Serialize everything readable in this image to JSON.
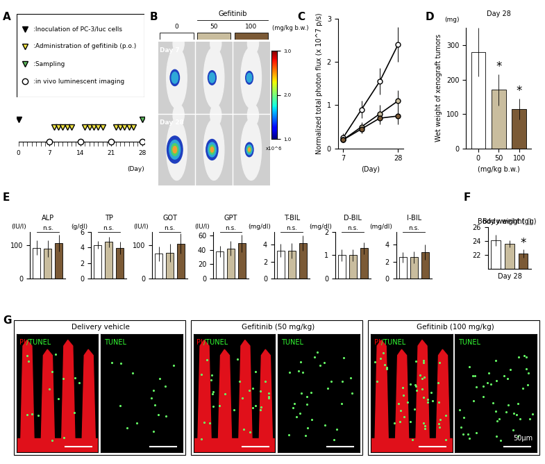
{
  "chart_data": [
    {
      "type": "line",
      "panel": "C",
      "ylabel": "Normalized total photon flux (x 10^7 p/s)",
      "xlabel": "(Day)",
      "x": [
        7,
        14,
        21,
        28
      ],
      "xlim": [
        5,
        30
      ],
      "xticks": [
        7,
        28
      ],
      "ylim": [
        0,
        3
      ],
      "yticks": [
        0,
        1,
        2,
        3
      ],
      "series": [
        {
          "color": "#ffffff",
          "marker": "o",
          "values": [
            0.25,
            0.9,
            1.55,
            2.4
          ],
          "errors": [
            0.1,
            0.2,
            0.3,
            0.4
          ]
        },
        {
          "color": "#c9bd9e",
          "marker": "o",
          "values": [
            0.2,
            0.5,
            0.8,
            1.1
          ],
          "errors": [
            0.05,
            0.1,
            0.2,
            0.25
          ]
        },
        {
          "color": "#7b5a36",
          "marker": "o",
          "values": [
            0.2,
            0.45,
            0.7,
            0.75
          ],
          "errors": [
            0.05,
            0.1,
            0.15,
            0.2
          ]
        }
      ]
    },
    {
      "type": "bar",
      "panel": "D",
      "title": "Day 28",
      "y_label": "(mg)",
      "ylabel": "Wet weight of xenograft tumors",
      "xlabel": "(mg/kg b.w.)",
      "categories": [
        "0",
        "50",
        "100"
      ],
      "values": [
        280,
        170,
        115
      ],
      "errors": [
        70,
        45,
        30
      ],
      "colors": [
        "#ffffff",
        "#c9bd9e",
        "#7b5a36"
      ],
      "ylim": [
        0,
        350
      ],
      "yticks": [
        0,
        100,
        200,
        300
      ],
      "annotations": [
        {
          "text": "*",
          "index": 1
        },
        {
          "text": "*",
          "index": 2
        }
      ]
    },
    {
      "type": "bar",
      "panel": "E",
      "title": "ALP",
      "y_label": "(IU/l)",
      "categories": [
        null,
        null,
        null
      ],
      "values": [
        92,
        90,
        107
      ],
      "errors": [
        22,
        25,
        25
      ],
      "colors": [
        "#ffffff",
        "#c9bd9e",
        "#7b5a36"
      ],
      "ylim": [
        0,
        140
      ],
      "yticks": [
        0,
        100
      ],
      "tick_labels": "y",
      "annotations": [
        {
          "text": "n.s."
        }
      ]
    },
    {
      "type": "bar",
      "panel": "E",
      "title": "TP",
      "y_label": "(g/dl)",
      "categories": [
        null,
        null,
        null
      ],
      "values": [
        4.3,
        4.7,
        3.9
      ],
      "errors": [
        0.5,
        0.7,
        0.8
      ],
      "colors": [
        "#ffffff",
        "#c9bd9e",
        "#7b5a36"
      ],
      "ylim": [
        0,
        6
      ],
      "yticks": [
        0,
        2,
        4,
        6
      ],
      "tick_labels": "y",
      "annotations": [
        {
          "text": "n.s."
        }
      ]
    },
    {
      "type": "bar",
      "panel": "E",
      "title": "GOT",
      "y_label": "(IU/l)",
      "categories": [
        null,
        null,
        null
      ],
      "values": [
        75,
        77,
        105
      ],
      "errors": [
        22,
        28,
        30
      ],
      "colors": [
        "#ffffff",
        "#c9bd9e",
        "#7b5a36"
      ],
      "ylim": [
        0,
        140
      ],
      "yticks": [
        0,
        100
      ],
      "tick_labels": "y",
      "annotations": [
        {
          "text": "n.s."
        }
      ]
    },
    {
      "type": "bar",
      "panel": "E",
      "title": "GPT",
      "y_label": "(IU/l)",
      "categories": [
        null,
        null,
        null
      ],
      "values": [
        38,
        42,
        49
      ],
      "errors": [
        8,
        10,
        12
      ],
      "colors": [
        "#ffffff",
        "#c9bd9e",
        "#7b5a36"
      ],
      "ylim": [
        0,
        65
      ],
      "yticks": [
        0,
        20,
        40,
        60
      ],
      "tick_labels": "y",
      "annotations": [
        {
          "text": "n.s."
        }
      ]
    },
    {
      "type": "bar",
      "panel": "E",
      "title": "T-BIL",
      "y_label": "(mg/dl)",
      "categories": [
        null,
        null,
        null
      ],
      "values": [
        3.3,
        3.3,
        4.2
      ],
      "errors": [
        0.8,
        0.9,
        0.9
      ],
      "colors": [
        "#ffffff",
        "#c9bd9e",
        "#7b5a36"
      ],
      "ylim": [
        0,
        5.5
      ],
      "yticks": [
        0,
        2,
        4
      ],
      "tick_labels": "y",
      "annotations": [
        {
          "text": "n.s."
        }
      ]
    },
    {
      "type": "bar",
      "panel": "E",
      "title": "D-BIL",
      "y_label": "(mg/dl)",
      "categories": [
        null,
        null,
        null
      ],
      "values": [
        1.0,
        1.0,
        1.3
      ],
      "errors": [
        0.25,
        0.25,
        0.25
      ],
      "colors": [
        "#ffffff",
        "#c9bd9e",
        "#7b5a36"
      ],
      "ylim": [
        0,
        2
      ],
      "yticks": [
        0,
        1,
        2
      ],
      "tick_labels": "y",
      "annotations": [
        {
          "text": "n.s."
        }
      ]
    },
    {
      "type": "bar",
      "panel": "E",
      "title": "I-BIL",
      "y_label": "(mg/dl)",
      "categories": [
        null,
        null,
        null
      ],
      "values": [
        2.5,
        2.5,
        3.1
      ],
      "errors": [
        0.6,
        0.7,
        0.9
      ],
      "colors": [
        "#ffffff",
        "#c9bd9e",
        "#7b5a36"
      ],
      "ylim": [
        0,
        5.5
      ],
      "yticks": [
        0,
        2,
        4
      ],
      "tick_labels": "y",
      "annotations": [
        {
          "text": "n.s."
        }
      ]
    },
    {
      "type": "bar",
      "panel": "F",
      "title": "Body weight (g)",
      "xlabel": "Day 28",
      "categories": [
        null,
        null,
        null
      ],
      "values": [
        24.1,
        23.6,
        22.2
      ],
      "errors": [
        0.8,
        0.5,
        0.6
      ],
      "colors": [
        "#ffffff",
        "#c9bd9e",
        "#7b5a36"
      ],
      "ylim": [
        20,
        26
      ],
      "yticks": [
        22,
        24,
        26
      ],
      "tick_labels": "y",
      "annotations": [
        {
          "text": "*",
          "index": 2
        }
      ]
    }
  ],
  "panel_labels": [
    "A",
    "B",
    "C",
    "D",
    "E",
    "F",
    "G"
  ],
  "timeline": {
    "legend": [
      {
        "symbol": "inoculation",
        "text": ":Inoculation of PC-3/luc cells"
      },
      {
        "symbol": "administration",
        "text": ":Administration of gefitinib (p.o.)"
      },
      {
        "symbol": "sampling",
        "text": ":Sampling"
      },
      {
        "symbol": "imaging",
        "text": ":in vivo luminescent imaging"
      }
    ],
    "inoculation": [
      0
    ],
    "administration": [
      8,
      9,
      10,
      11,
      12,
      15,
      16,
      17,
      18,
      19,
      22,
      23,
      24,
      25,
      26
    ],
    "sampling": [
      28
    ],
    "imaging": [
      7,
      14,
      21,
      28
    ],
    "xlim": [
      0,
      28
    ],
    "xticks": [
      0,
      7,
      14,
      21,
      28
    ],
    "xlabel": "(Day)"
  },
  "imaging_panel": {
    "header": "Gefitinib",
    "doses": [
      "0",
      "50",
      "100"
    ],
    "unit": "(mg/kg b.w.)",
    "rows": [
      "Day 7",
      "Day 28"
    ],
    "colorbar": {
      "range": [
        1.0,
        3.0
      ],
      "ticks": [
        1.0,
        2.0,
        3.0
      ],
      "label": "x10^6"
    }
  },
  "histology": {
    "panels": [
      "Delivery vehicle",
      "Gefitinib (50 mg/kg)",
      "Gefitinib (100 mg/kg)"
    ],
    "merge_label": [
      "PI",
      "/TUNEL"
    ],
    "single_label": "TUNEL",
    "scale_bar": "50μm"
  }
}
